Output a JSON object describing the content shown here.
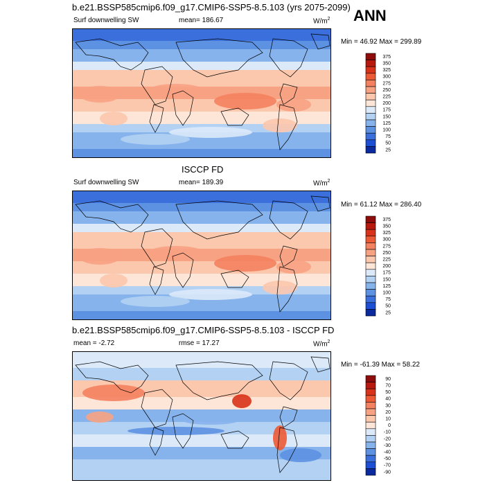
{
  "header": {
    "season": "ANN"
  },
  "chart_data": [
    {
      "type": "heatmap",
      "title": "b.e21.BSSP585cmip6.f09_g17.CMIP6-SSP5-8.5.103 (yrs 2075-2099)",
      "field_label": "Surf downwelling SW",
      "stat_text": "mean= 186.67",
      "units": "W/m",
      "units_sup": "2",
      "minmax_text": "Min = 46.92 Max = 299.89",
      "levels": [
        "375",
        "350",
        "325",
        "300",
        "275",
        "250",
        "225",
        "200",
        "175",
        "150",
        "125",
        "100",
        "75",
        "50",
        "25"
      ],
      "level_colors": [
        "#8e0c0c",
        "#b8190f",
        "#d8321a",
        "#ec5a35",
        "#f4815f",
        "#f7a283",
        "#fbc7ad",
        "#fde6d8",
        "#dbe9f9",
        "#b3d1f3",
        "#87b3ec",
        "#5d91e2",
        "#3b6fdb",
        "#1c4fd4",
        "#0b2a9e"
      ]
    },
    {
      "type": "heatmap",
      "title": "ISCCP FD",
      "field_label": "Surf downwelling SW",
      "stat_text": "mean= 189.39",
      "units": "W/m",
      "units_sup": "2",
      "minmax_text": "Min = 61.12 Max = 286.40",
      "levels": [
        "375",
        "350",
        "325",
        "300",
        "275",
        "250",
        "225",
        "200",
        "175",
        "150",
        "125",
        "100",
        "75",
        "50",
        "25"
      ],
      "level_colors": [
        "#8e0c0c",
        "#b8190f",
        "#d8321a",
        "#ec5a35",
        "#f4815f",
        "#f7a283",
        "#fbc7ad",
        "#fde6d8",
        "#dbe9f9",
        "#b3d1f3",
        "#87b3ec",
        "#5d91e2",
        "#3b6fdb",
        "#1c4fd4",
        "#0b2a9e"
      ]
    },
    {
      "type": "heatmap",
      "title": "b.e21.BSSP585cmip6.f09_g17.CMIP6-SSP5-8.5.103 - ISCCP FD",
      "stat_text": "mean = -2.72",
      "rmse_text": "rmse = 17.27",
      "units": "W/m",
      "units_sup": "2",
      "minmax_text": "Min = -61.39 Max = 58.22",
      "levels": [
        "90",
        "70",
        "50",
        "40",
        "30",
        "20",
        "10",
        "0",
        "-10",
        "-20",
        "-30",
        "-40",
        "-50",
        "-70",
        "-90"
      ],
      "level_colors": [
        "#8e0c0c",
        "#b8190f",
        "#d8321a",
        "#ec5a35",
        "#f4815f",
        "#f7a283",
        "#fbc7ad",
        "#fde6d8",
        "#dbe9f9",
        "#b3d1f3",
        "#87b3ec",
        "#5d91e2",
        "#3b6fdb",
        "#1c4fd4",
        "#0b2a9e"
      ]
    }
  ]
}
